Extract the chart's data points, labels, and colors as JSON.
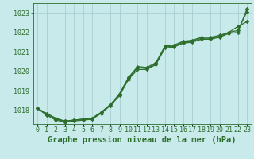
{
  "title": "Graphe pression niveau de la mer (hPa)",
  "background_color": "#c8eaea",
  "grid_color": "#a8d0d0",
  "line_color": "#2d6e2d",
  "x_values": [
    0,
    1,
    2,
    3,
    4,
    5,
    6,
    7,
    8,
    9,
    10,
    11,
    12,
    13,
    14,
    15,
    16,
    17,
    18,
    19,
    20,
    21,
    22,
    23
  ],
  "series1": [
    1018.1,
    1017.85,
    1017.6,
    1017.45,
    1017.5,
    1017.55,
    1017.6,
    1017.9,
    1018.3,
    1018.85,
    1019.7,
    1020.25,
    1020.2,
    1020.45,
    1021.3,
    1021.35,
    1021.55,
    1021.6,
    1021.75,
    1021.75,
    1021.85,
    1022.0,
    1022.3,
    1022.55
  ],
  "series2": [
    1018.1,
    1017.8,
    1017.55,
    1017.45,
    1017.5,
    1017.55,
    1017.6,
    1017.9,
    1018.3,
    1018.8,
    1019.65,
    1020.2,
    1020.15,
    1020.4,
    1021.25,
    1021.3,
    1021.5,
    1021.55,
    1021.7,
    1021.7,
    1021.8,
    1022.0,
    1022.1,
    1023.05
  ],
  "series3": [
    1018.1,
    1017.75,
    1017.5,
    1017.4,
    1017.45,
    1017.5,
    1017.55,
    1017.85,
    1018.25,
    1018.75,
    1019.6,
    1020.1,
    1020.1,
    1020.35,
    1021.2,
    1021.25,
    1021.45,
    1021.5,
    1021.65,
    1021.65,
    1021.75,
    1021.95,
    1022.0,
    1023.2
  ],
  "ylim_min": 1017.3,
  "ylim_max": 1023.5,
  "yticks": [
    1018,
    1019,
    1020,
    1021,
    1022,
    1023
  ],
  "xticks": [
    0,
    1,
    2,
    3,
    4,
    5,
    6,
    7,
    8,
    9,
    10,
    11,
    12,
    13,
    14,
    15,
    16,
    17,
    18,
    19,
    20,
    21,
    22,
    23
  ],
  "marker": "D",
  "marker_size": 2.2,
  "line_width": 0.9,
  "title_fontsize": 7.5,
  "tick_fontsize": 6.0
}
